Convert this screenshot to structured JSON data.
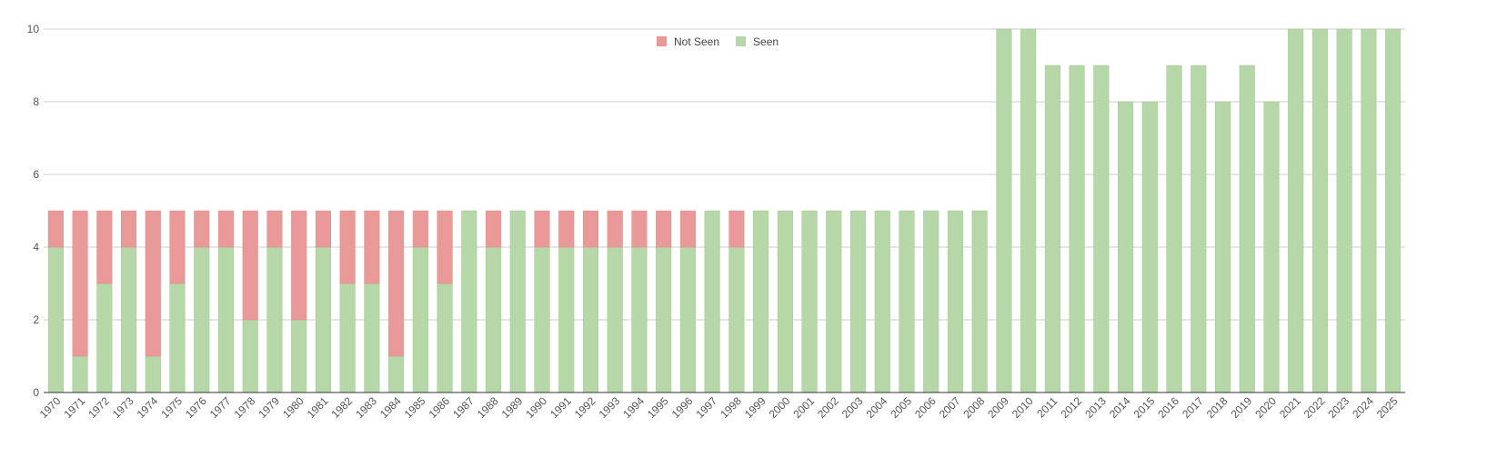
{
  "chart_data": {
    "type": "bar",
    "stacked": true,
    "categories": [
      "1970",
      "1971",
      "1972",
      "1973",
      "1974",
      "1975",
      "1976",
      "1977",
      "1978",
      "1979",
      "1980",
      "1981",
      "1982",
      "1983",
      "1984",
      "1985",
      "1986",
      "1987",
      "1988",
      "1989",
      "1990",
      "1991",
      "1992",
      "1993",
      "1994",
      "1995",
      "1996",
      "1997",
      "1998",
      "1999",
      "2000",
      "2001",
      "2002",
      "2003",
      "2004",
      "2005",
      "2006",
      "2007",
      "2008",
      "2009",
      "2010",
      "2011",
      "2012",
      "2013",
      "2014",
      "2015",
      "2016",
      "2017",
      "2018",
      "2019",
      "2020",
      "2021",
      "2022",
      "2023",
      "2024",
      "2025"
    ],
    "series": [
      {
        "name": "Seen",
        "color": "#b6d7a8",
        "values": [
          4,
          1,
          3,
          4,
          1,
          3,
          4,
          4,
          2,
          4,
          2,
          4,
          3,
          3,
          1,
          4,
          3,
          5,
          4,
          5,
          4,
          4,
          4,
          4,
          4,
          4,
          4,
          5,
          4,
          5,
          5,
          5,
          5,
          5,
          5,
          5,
          5,
          5,
          5,
          10,
          10,
          9,
          9,
          9,
          8,
          8,
          9,
          9,
          8,
          9,
          8,
          10,
          10,
          10,
          10,
          10
        ]
      },
      {
        "name": "Not Seen",
        "color": "#ea9999",
        "values": [
          1,
          4,
          2,
          1,
          4,
          2,
          1,
          1,
          3,
          1,
          3,
          1,
          2,
          2,
          4,
          1,
          2,
          0,
          1,
          0,
          1,
          1,
          1,
          1,
          1,
          1,
          1,
          0,
          1,
          0,
          0,
          0,
          0,
          0,
          0,
          0,
          0,
          0,
          0,
          0,
          0,
          0,
          0,
          0,
          0,
          0,
          0,
          0,
          0,
          0,
          0,
          0,
          0,
          0,
          0,
          0
        ]
      }
    ],
    "legend": {
      "placement": "top-center",
      "items": [
        "Not Seen",
        "Seen"
      ]
    },
    "ylim": [
      0,
      10
    ],
    "yticks": [
      0,
      2,
      4,
      6,
      8,
      10
    ],
    "grid": true,
    "title": "",
    "xlabel": "",
    "ylabel": ""
  },
  "colors": {
    "seen": "#b6d7a8",
    "not_seen": "#ea9999",
    "grid": "#cccccc",
    "axis": "#333333"
  }
}
